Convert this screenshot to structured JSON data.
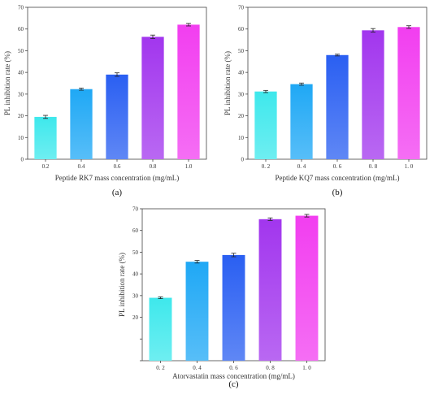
{
  "chart_data": [
    {
      "type": "bar",
      "panel_label": "(a)",
      "xlabel": "Peptide RK7 mass concentration (mg/mL)",
      "ylabel": "PL inhibition rate (%)",
      "categories": [
        "0.2",
        "0.4",
        "0.6",
        "0.8",
        "1.0"
      ],
      "values": [
        19.5,
        32.3,
        39.0,
        56.4,
        62.0
      ],
      "errors": [
        0.7,
        0.5,
        0.8,
        0.8,
        0.6
      ],
      "ylim": [
        0,
        70
      ],
      "yticks": [
        "0",
        "10",
        "20",
        "30",
        "40",
        "50",
        "60",
        "70"
      ],
      "colors": [
        "#3ee8ec",
        "#1fa8f5",
        "#2a5ff2",
        "#a236ee",
        "#f23ef0"
      ]
    },
    {
      "type": "bar",
      "panel_label": "(b)",
      "xlabel": "Peptide KQ7 mass concentration (mg/mL)",
      "ylabel": "PL inhibition rate (%)",
      "categories": [
        "0. 2",
        "0. 4",
        "0. 6",
        "0. 8",
        "1. 0"
      ],
      "values": [
        31.2,
        34.6,
        48.0,
        59.4,
        60.9
      ],
      "errors": [
        0.5,
        0.5,
        0.4,
        0.8,
        0.6
      ],
      "ylim": [
        0,
        70
      ],
      "yticks": [
        "0",
        "10",
        "20",
        "30",
        "40",
        "50",
        "60",
        "70"
      ],
      "colors": [
        "#3ee8ec",
        "#1fa8f5",
        "#2a5ff2",
        "#a236ee",
        "#f23ef0"
      ]
    },
    {
      "type": "bar",
      "panel_label": "(c)",
      "xlabel": "Atorvastatin mass concentration (mg/mL)",
      "ylabel": "PL inhibition rate (%)",
      "categories": [
        "0. 2",
        "0. 4",
        "0. 6",
        "0. 8",
        "1. 0"
      ],
      "values": [
        29.0,
        45.6,
        48.7,
        65.2,
        66.8
      ],
      "errors": [
        0.4,
        0.6,
        0.8,
        0.6,
        0.6
      ],
      "ylim": [
        0,
        70
      ],
      "yticks": [
        "20",
        "30",
        "40",
        "50",
        "60",
        "70"
      ],
      "colors": [
        "#3ee8ec",
        "#1fa8f5",
        "#2a5ff2",
        "#a236ee",
        "#f23ef0"
      ]
    }
  ]
}
